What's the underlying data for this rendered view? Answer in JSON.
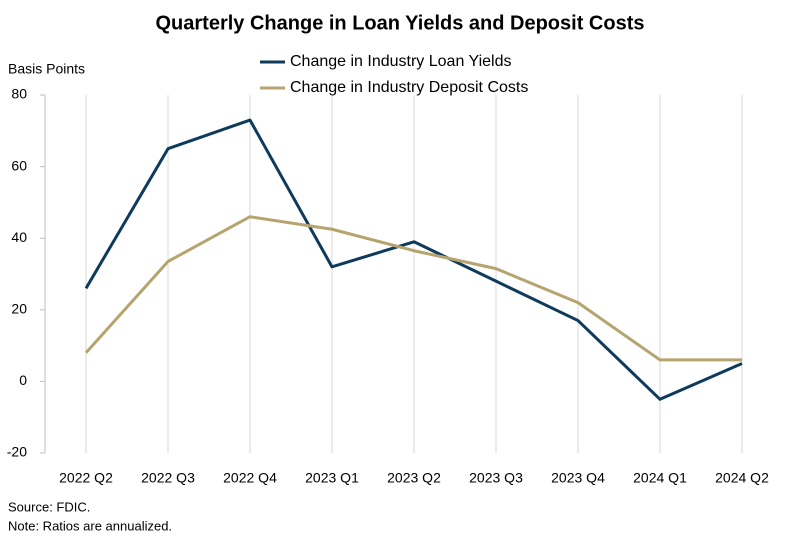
{
  "chart_data": {
    "type": "line",
    "title": "Quarterly Change in Loan Yields and Deposit Costs",
    "y_label": "Basis Points",
    "categories": [
      "2022 Q2",
      "2022 Q3",
      "2022 Q4",
      "2023 Q1",
      "2023 Q2",
      "2023 Q3",
      "2023 Q4",
      "2024 Q1",
      "2024 Q2"
    ],
    "series": [
      {
        "name": "Change in Industry Loan Yields",
        "color": "#0e3a5c",
        "values": [
          26,
          65,
          73,
          32,
          39,
          28,
          17,
          -5,
          5
        ]
      },
      {
        "name": "Change in Industry Deposit Costs",
        "color": "#b5a46e",
        "values": [
          8,
          33.5,
          46,
          42.5,
          36.5,
          31.5,
          22,
          6,
          6
        ]
      }
    ],
    "ylim": [
      -20,
      80
    ],
    "yticks": [
      -20,
      0,
      20,
      40,
      60,
      80
    ],
    "grid": true,
    "legend": "top",
    "source": "Source: FDIC.",
    "note": "Note: Ratios are annualized."
  }
}
